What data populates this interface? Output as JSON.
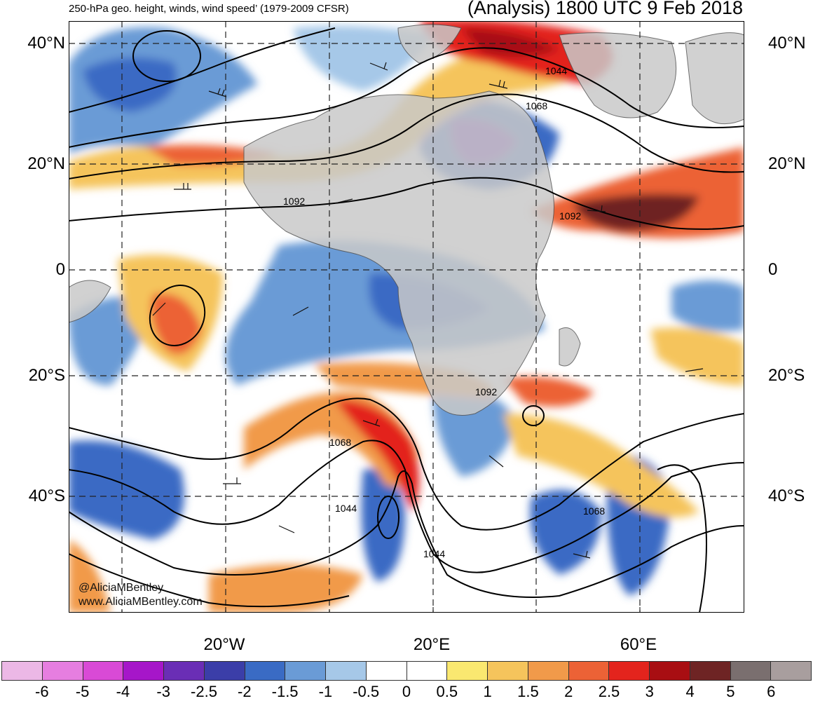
{
  "header": {
    "title_left": "250-hPa geo. height, winds, wind speed’ (1979-2009 CFSR)",
    "title_right": "(Analysis) 1800 UTC 9 Feb 2018"
  },
  "latitudes": [
    "40°N",
    "20°N",
    "0",
    "20°S",
    "40°S"
  ],
  "longitudes": [
    "20°W",
    "20°E",
    "60°E"
  ],
  "contour_labels": [
    "1044",
    "1068",
    "1092",
    "1092",
    "1092",
    "1068",
    "1044",
    "1068",
    "1044"
  ],
  "credits": [
    "@AliciaMBentley",
    "www.AliciaMBentley.com"
  ],
  "colorbar": {
    "labels": [
      "-6",
      "-5",
      "-4",
      "-3",
      "-2.5",
      "-2",
      "-1.5",
      "-1",
      "-0.5",
      "0",
      "0.5",
      "1",
      "1.5",
      "2",
      "2.5",
      "3",
      "4",
      "5",
      "6"
    ],
    "colors": [
      "#ecb8e6",
      "#e67ee0",
      "#d94ad6",
      "#a616c9",
      "#6a2eb5",
      "#3b3ea8",
      "#3a6bc4",
      "#6a9bd6",
      "#a6c8e8",
      "#ffffff",
      "#ffffff",
      "#fae870",
      "#f5c45c",
      "#f19a4a",
      "#ec6236",
      "#e3241d",
      "#a80e12",
      "#6e2424",
      "#7a6f6f",
      "#a89e9e"
    ]
  },
  "colors": {
    "land": "#c9c9c9",
    "grid": "#222222",
    "contour": "#000000"
  }
}
